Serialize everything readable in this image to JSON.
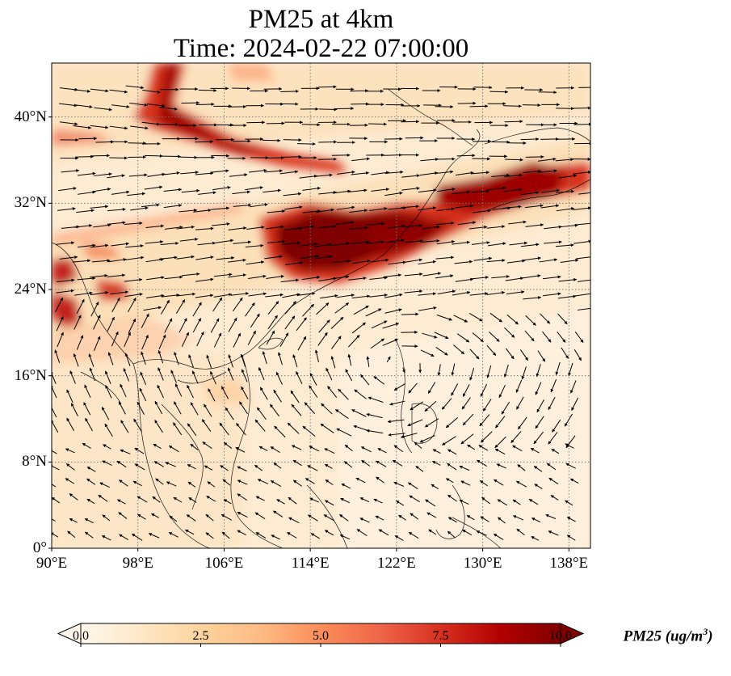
{
  "title": {
    "line1": "PM25 at 4km",
    "line2": "Time: 2024-02-22 07:00:00"
  },
  "map": {
    "projection": "PlateCarree",
    "lon_range": [
      90,
      140
    ],
    "lat_range": [
      0,
      45
    ],
    "lat_ticks": [
      {
        "value": 0,
        "label": "0°"
      },
      {
        "value": 8,
        "label": "8°N"
      },
      {
        "value": 16,
        "label": "16°N"
      },
      {
        "value": 24,
        "label": "24°N"
      },
      {
        "value": 32,
        "label": "32°N"
      },
      {
        "value": 40,
        "label": "40°N"
      }
    ],
    "lon_ticks": [
      {
        "value": 90,
        "label": "90°E"
      },
      {
        "value": 98,
        "label": "98°E"
      },
      {
        "value": 106,
        "label": "106°E"
      },
      {
        "value": 114,
        "label": "114°E"
      },
      {
        "value": 122,
        "label": "122°E"
      },
      {
        "value": 130,
        "label": "130°E"
      },
      {
        "value": 138,
        "label": "138°E"
      }
    ],
    "gridlines": "dotted",
    "overlay": "wind vectors (black arrows)"
  },
  "colorbar": {
    "label_main": "PM25 (ug/m",
    "label_sup": "3",
    "label_end": ")",
    "ticks": [
      "0.0",
      "2.5",
      "5.0",
      "7.5",
      "10.0"
    ],
    "range": [
      0,
      10
    ],
    "extend": "both",
    "colormap": "OrRd",
    "colors": [
      "#fff7ec",
      "#fee8c8",
      "#fdd49e",
      "#fdbb84",
      "#fc8d59",
      "#ef6548",
      "#d7301f",
      "#b30000",
      "#7f0000"
    ]
  }
}
